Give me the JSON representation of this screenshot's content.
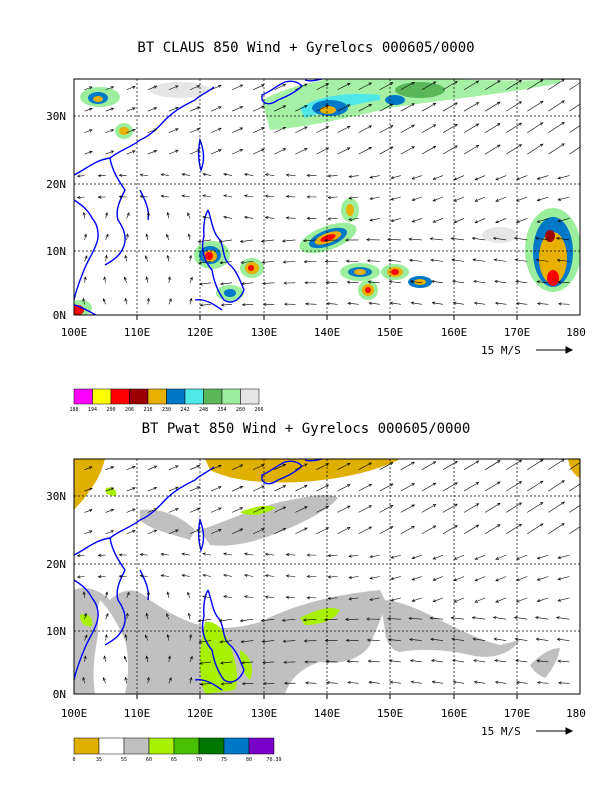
{
  "panels": [
    {
      "title": "BT CLAUS 850 Wind + Gyrelocs 000605/0000",
      "scale_label": "15 M/S",
      "legend": {
        "colors": [
          "#ff00ff",
          "#ffff00",
          "#ff0000",
          "#9b0000",
          "#e8b000",
          "#0078c8",
          "#4fe8e8",
          "#5ab85a",
          "#9bee9b",
          "#e6e6e6"
        ],
        "labels": [
          "188",
          "194",
          "200",
          "206",
          "216",
          "230",
          "242",
          "248",
          "254",
          "260",
          "266"
        ]
      }
    },
    {
      "title": "BT Pwat 850 Wind + Gyrelocs 000605/0000",
      "scale_label": "15 M/S",
      "legend": {
        "colors": [
          "#e0b000",
          "#ffffff",
          "#c0c0c0",
          "#a8f000",
          "#48c000",
          "#007800",
          "#0078c8",
          "#7800c8"
        ],
        "labels": [
          "0",
          "35",
          "55",
          "60",
          "65",
          "70",
          "75",
          "80",
          "70.39"
        ]
      }
    }
  ],
  "axes": {
    "x_ticks": [
      "100E",
      "110E",
      "120E",
      "130E",
      "140E",
      "150E",
      "160E",
      "170E",
      "180"
    ],
    "y_ticks": [
      "0N",
      "10N",
      "20N",
      "30N"
    ],
    "lon_range": [
      100,
      180
    ],
    "lat_range": [
      0,
      35
    ]
  },
  "colors": {
    "coast": "#0000ff",
    "grid": "#000000"
  }
}
